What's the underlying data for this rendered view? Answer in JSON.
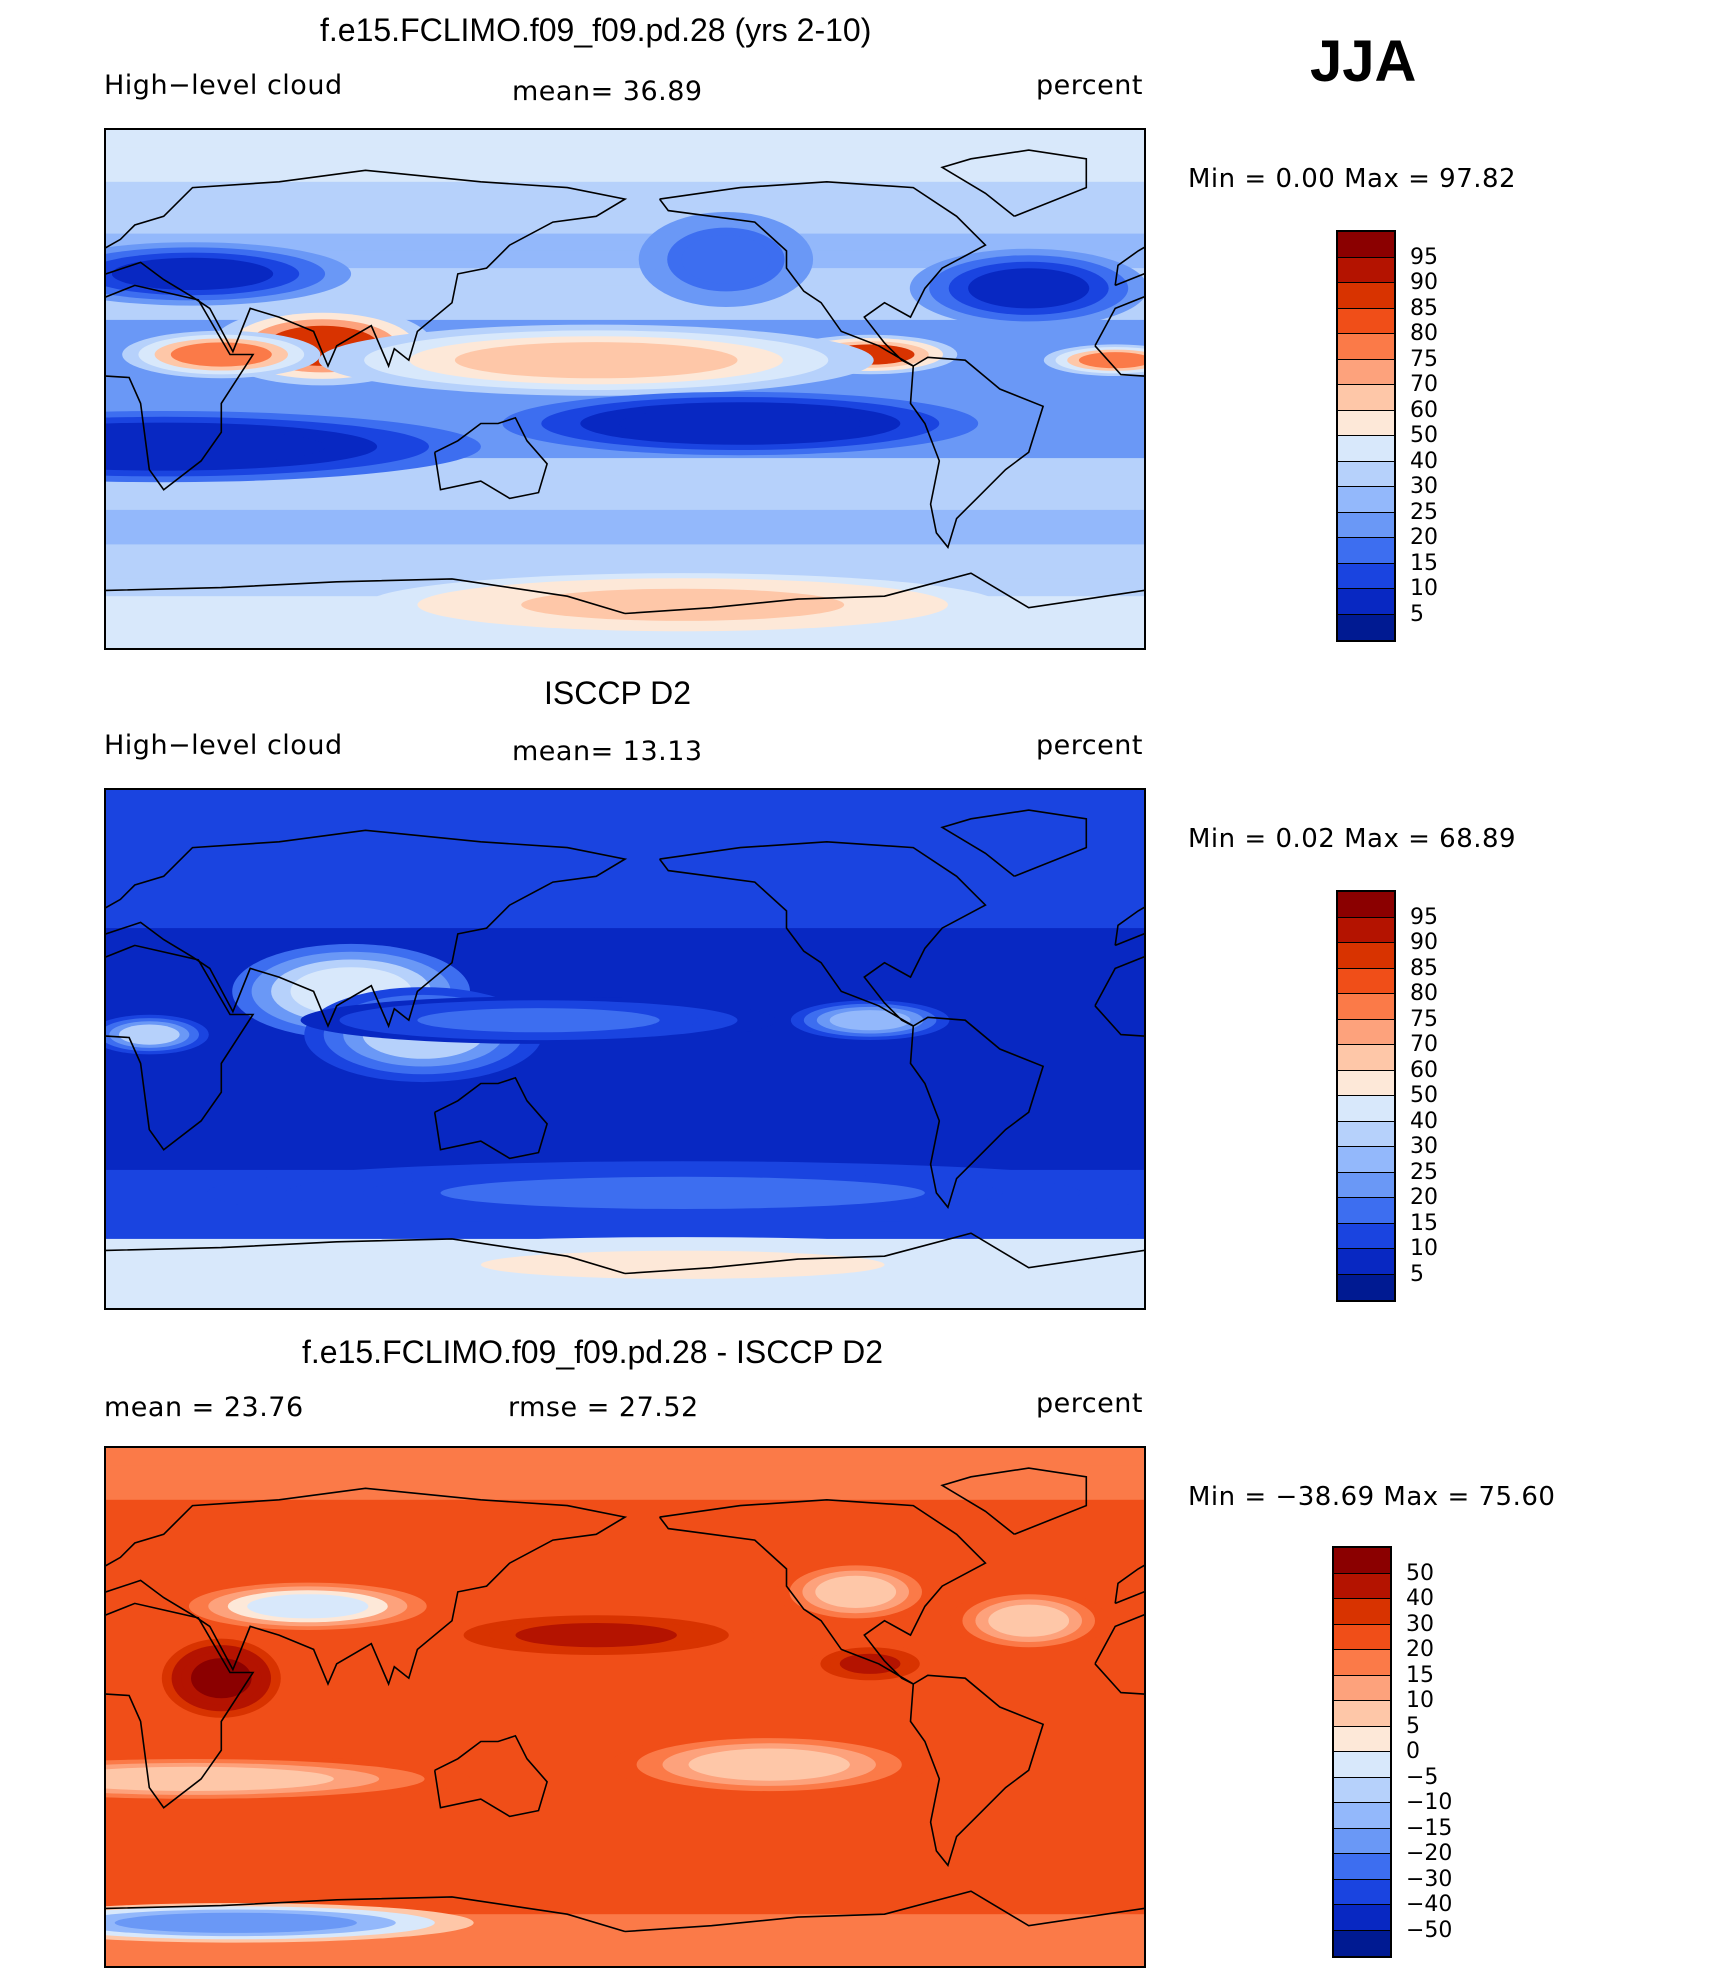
{
  "season": "JJA",
  "panels": [
    {
      "title": "f.e15.FCLIMO.f09_f09.pd.28 (yrs 2-10)",
      "left_label": "High−level cloud",
      "mid_label": "mean=   36.89",
      "right_label": "percent",
      "minmax": "Min =     0.00  Max =    97.82",
      "cbar_labels": [
        "95",
        "90",
        "85",
        "80",
        "75",
        "70",
        "60",
        "50",
        "40",
        "30",
        "25",
        "20",
        "15",
        "10",
        "5"
      ]
    },
    {
      "title": "ISCCP D2",
      "left_label": "High−level cloud",
      "mid_label": "mean=   13.13",
      "right_label": "percent",
      "minmax": "Min =     0.02  Max =    68.89",
      "cbar_labels": [
        "95",
        "90",
        "85",
        "80",
        "75",
        "70",
        "60",
        "50",
        "40",
        "30",
        "25",
        "20",
        "15",
        "10",
        "5"
      ]
    },
    {
      "title": "f.e15.FCLIMO.f09_f09.pd.28 - ISCCP D2",
      "left_label": "mean =    23.76",
      "mid_label": "rmse =    27.52",
      "right_label": "percent",
      "minmax": "Min = −38.69  Max =    75.60",
      "cbar_labels": [
        "50",
        "40",
        "30",
        "20",
        "15",
        "10",
        "5",
        "0",
        "−5",
        "−10",
        "−15",
        "−20",
        "−30",
        "−40",
        "−50"
      ]
    }
  ],
  "colors": {
    "cbar_abs": [
      "#8b0000",
      "#b41300",
      "#d83300",
      "#f04e18",
      "#fb7a48",
      "#fda27c",
      "#fec7a8",
      "#fde8d8",
      "#d8e8fb",
      "#b6d1fb",
      "#93b8fb",
      "#6a98f6",
      "#3d6ef0",
      "#1a44e0",
      "#0828c2",
      "#001a92"
    ],
    "cbar_diff": [
      "#8b0000",
      "#b41300",
      "#d83300",
      "#f04e18",
      "#fb7a48",
      "#fda27c",
      "#fec7a8",
      "#fde8d8",
      "#d8e8fb",
      "#b6d1fb",
      "#93b8fb",
      "#6a98f6",
      "#3d6ef0",
      "#1a44e0",
      "#0828c2",
      "#001a92"
    ],
    "land_outline": "#000000"
  },
  "chart_data": [
    {
      "type": "heatmap",
      "title": "f.e15.FCLIMO.f09_f09.pd.28 (yrs 2-10)",
      "field": "High-level cloud",
      "units": "percent",
      "season": "JJA",
      "mean": 36.89,
      "min": 0.0,
      "max": 97.82,
      "levels": [
        5,
        10,
        15,
        20,
        25,
        30,
        40,
        50,
        60,
        70,
        75,
        80,
        85,
        90,
        95
      ],
      "lon_range": [
        0,
        360
      ],
      "lat_range": [
        -90,
        90
      ],
      "features": [
        {
          "lon": 75,
          "lat": 15,
          "rlon": 28,
          "rlat": 10,
          "value": 88
        },
        {
          "lon": 265,
          "lat": 12,
          "rlon": 22,
          "rlat": 5,
          "value": 85
        },
        {
          "lon": 170,
          "lat": 10,
          "rlon": 70,
          "rlat": 9,
          "value": 60
        },
        {
          "lon": 40,
          "lat": 12,
          "rlon": 25,
          "rlat": 6,
          "value": 75
        },
        {
          "lon": 350,
          "lat": 10,
          "rlon": 18,
          "rlat": 4,
          "value": 75
        },
        {
          "lon": 20,
          "lat": -20,
          "rlon": 80,
          "rlat": 9,
          "value": 5
        },
        {
          "lon": 220,
          "lat": -12,
          "rlon": 60,
          "rlat": 8,
          "value": 5
        },
        {
          "lon": 320,
          "lat": 35,
          "rlon": 30,
          "rlat": 10,
          "value": 8
        },
        {
          "lon": 215,
          "lat": 45,
          "rlon": 22,
          "rlat": 12,
          "value": 15
        },
        {
          "lon": 30,
          "lat": 40,
          "rlon": 40,
          "rlat": 8,
          "value": 8
        },
        {
          "lon": 200,
          "lat": -75,
          "rlon": 80,
          "rlat": 8,
          "value": 60
        }
      ]
    },
    {
      "type": "heatmap",
      "title": "ISCCP D2",
      "field": "High-level cloud",
      "units": "percent",
      "season": "JJA",
      "mean": 13.13,
      "min": 0.02,
      "max": 68.89,
      "levels": [
        5,
        10,
        15,
        20,
        25,
        30,
        40,
        50,
        60,
        70,
        75,
        80,
        85,
        90,
        95
      ],
      "lon_range": [
        0,
        360
      ],
      "lat_range": [
        -90,
        90
      ],
      "features": [
        {
          "lon": 85,
          "lat": 20,
          "rlon": 30,
          "rlat": 12,
          "value": 40
        },
        {
          "lon": 110,
          "lat": 5,
          "rlon": 30,
          "rlat": 12,
          "value": 30
        },
        {
          "lon": 15,
          "lat": 5,
          "rlon": 15,
          "rlat": 5,
          "value": 30
        },
        {
          "lon": 265,
          "lat": 10,
          "rlon": 20,
          "rlat": 5,
          "value": 25
        },
        {
          "lon": 150,
          "lat": 10,
          "rlon": 60,
          "rlat": 6,
          "value": 15
        },
        {
          "lon": 200,
          "lat": -75,
          "rlon": 100,
          "rlat": 7,
          "value": 50
        },
        {
          "lon": 200,
          "lat": -50,
          "rlon": 120,
          "rlat": 8,
          "value": 15
        }
      ]
    },
    {
      "type": "heatmap",
      "title": "f.e15.FCLIMO.f09_f09.pd.28 - ISCCP D2",
      "units": "percent",
      "season": "JJA",
      "mean": 23.76,
      "rmse": 27.52,
      "min": -38.69,
      "max": 75.6,
      "levels": [
        -50,
        -40,
        -30,
        -20,
        -15,
        -10,
        -5,
        0,
        5,
        10,
        15,
        20,
        30,
        40,
        50
      ],
      "lon_range": [
        0,
        360
      ],
      "lat_range": [
        -90,
        90
      ],
      "features": [
        {
          "lon": 40,
          "lat": 10,
          "rlon": 15,
          "rlat": 10,
          "value": 55
        },
        {
          "lon": 170,
          "lat": 25,
          "rlon": 40,
          "rlat": 6,
          "value": 40
        },
        {
          "lon": 265,
          "lat": 15,
          "rlon": 15,
          "rlat": 5,
          "value": 40
        },
        {
          "lon": 30,
          "lat": -25,
          "rlon": 70,
          "rlat": 6,
          "value": 5
        },
        {
          "lon": 230,
          "lat": -20,
          "rlon": 40,
          "rlat": 8,
          "value": 5
        },
        {
          "lon": 70,
          "lat": 35,
          "rlon": 30,
          "rlat": 6,
          "value": -5
        },
        {
          "lon": 260,
          "lat": 40,
          "rlon": 20,
          "rlat": 8,
          "value": 5
        },
        {
          "lon": 320,
          "lat": 30,
          "rlon": 20,
          "rlat": 8,
          "value": 5
        },
        {
          "lon": 45,
          "lat": -75,
          "rlon": 60,
          "rlat": 5,
          "value": -20
        }
      ]
    }
  ]
}
